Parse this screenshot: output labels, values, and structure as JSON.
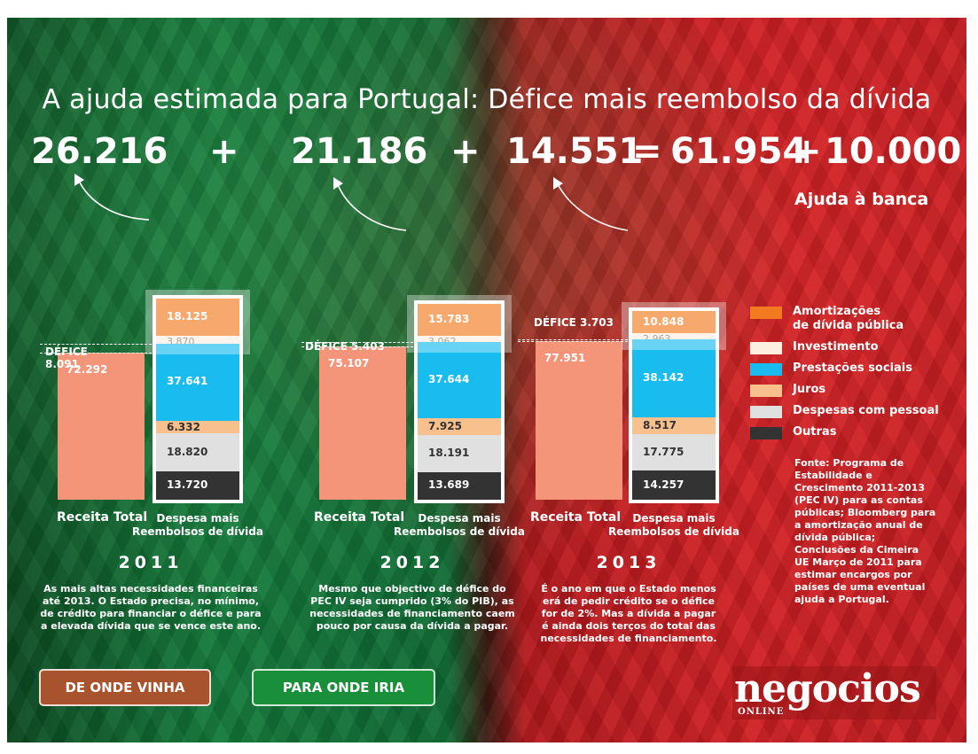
{
  "title": "A ajuda estimada para Portugal: Défice mais reembolso da dívida",
  "equation": {
    "t1": "26.216",
    "op1": "+",
    "t2": "21.186",
    "op2": "+",
    "t3": "14.551",
    "eq": "=",
    "total": "61.954",
    "op3": "+",
    "banca": "10.000",
    "banca_label": "Ajuda à banca"
  },
  "colors": {
    "receita": "#f4957a",
    "amortizacoes": "#f37a20",
    "investimento": "#fdeee0",
    "prestacoes": "#18bcee",
    "juros": "#f8c08c",
    "pessoal": "#e0e0e0",
    "outras": "#333333"
  },
  "chart_data": {
    "type": "bar",
    "title": "A ajuda estimada para Portugal: Défice mais reembolso da dívida",
    "categories": [
      "2011",
      "2012",
      "2013"
    ],
    "bar_labels": {
      "receita": "Receita Total",
      "despesa": "Despesa mais Reembolsos de dívida"
    },
    "receita_total": [
      72.292,
      75.107,
      77.951
    ],
    "defice": [
      8.091,
      5.403,
      3.703
    ],
    "series": [
      {
        "name": "Amortizações de dívida pública",
        "values": [
          18.125,
          15.783,
          10.848
        ]
      },
      {
        "name": "Investimento",
        "values": [
          3.87,
          3.062,
          2.963
        ]
      },
      {
        "name": "Prestações sociais",
        "values": [
          37.641,
          37.644,
          38.142
        ]
      },
      {
        "name": "Juros",
        "values": [
          6.332,
          7.925,
          8.517
        ]
      },
      {
        "name": "Despesas com pessoal",
        "values": [
          18.82,
          18.191,
          17.775
        ]
      },
      {
        "name": "Outras",
        "values": [
          13.72,
          13.689,
          14.257
        ]
      }
    ]
  },
  "years": [
    {
      "year": "2011",
      "receita": "72.292",
      "defice_label": "DÉFICE",
      "defice_value": "8.091",
      "values": [
        "18.125",
        "3.870",
        "37.641",
        "6.332",
        "18.820",
        "13.720"
      ],
      "receita_label": "Receita Total",
      "despesa_label_1": "Despesa mais",
      "despesa_label_2": "Reembolsos de dívida",
      "desc_lines": [
        "As mais altas necessidades financeiras",
        "até 2013. O Estado precisa, no mínimo,",
        "de crédito para financiar o défice e para",
        "a elevada dívida que se vence este ano."
      ]
    },
    {
      "year": "2012",
      "receita": "75.107",
      "defice_label": "DÉFICE",
      "defice_value": "5.403",
      "values": [
        "15.783",
        "3.062",
        "37.644",
        "7.925",
        "18.191",
        "13.689"
      ],
      "receita_label": "Receita Total",
      "despesa_label_1": "Despesa mais",
      "despesa_label_2": "Reembolsos de dívida",
      "desc_lines": [
        "Mesmo que objectivo de défice do",
        "PEC IV seja cumprido (3% do PIB), as",
        "necessidades de financiamento caem",
        "pouco por causa da dívida a pagar."
      ]
    },
    {
      "year": "2013",
      "receita": "77.951",
      "defice_label": "DÉFICE 3.703",
      "defice_value": "",
      "values": [
        "10.848",
        "2.963",
        "38.142",
        "8.517",
        "17.775",
        "14.257"
      ],
      "receita_label": "Receita Total",
      "despesa_label_1": "Despesa mais",
      "despesa_label_2": "Reembolsos de dívida",
      "desc_lines": [
        "É o ano em que o Estado menos",
        "erá de pedir crédito se o défice",
        "for de 2%. Mas a dívida a pagar",
        "é ainda dois terços do total das",
        "necessidades de financiamento."
      ]
    }
  ],
  "legend": [
    {
      "line1": "Amortizações",
      "line2": "de dívida pública",
      "color_key": "amortizacoes"
    },
    {
      "line1": "Investimento",
      "line2": "",
      "color_key": "investimento"
    },
    {
      "line1": "Prestações sociais",
      "line2": "",
      "color_key": "prestacoes"
    },
    {
      "line1": "Juros",
      "line2": "",
      "color_key": "juros"
    },
    {
      "line1": "Despesas com pessoal",
      "line2": "",
      "color_key": "pessoal"
    },
    {
      "line1": "Outras",
      "line2": "",
      "color_key": "outras"
    }
  ],
  "source_lines": [
    "Fonte: Programa de",
    "Estabilidade e",
    "Crescimento 2011-2013",
    "(PEC IV) para as contas",
    "públicas; Bloomberg para",
    "a amortização anual de",
    "dívida pública;",
    "Conclusões da Cimeira",
    "UE Março de 2011 para",
    "estimar encargos por",
    "países de uma eventual",
    "ajuda a Portugal."
  ],
  "buttons": {
    "de_onde": "DE ONDE VINHA",
    "para_onde": "PARA ONDE IRIA"
  },
  "logo": {
    "name": "negocios",
    "sub": "ONLINE"
  }
}
